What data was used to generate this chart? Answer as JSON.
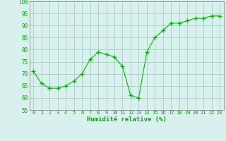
{
  "x": [
    0,
    1,
    2,
    3,
    4,
    5,
    6,
    7,
    8,
    9,
    10,
    11,
    12,
    13,
    14,
    15,
    16,
    17,
    18,
    19,
    20,
    21,
    22,
    23
  ],
  "y": [
    71,
    66,
    64,
    64,
    65,
    67,
    70,
    76,
    79,
    78,
    77,
    73,
    61,
    60,
    79,
    85,
    88,
    91,
    91,
    92,
    93,
    93,
    94,
    94
  ],
  "xlabel": "Humidité relative (%)",
  "ylim": [
    55,
    100
  ],
  "yticks": [
    55,
    60,
    65,
    70,
    75,
    80,
    85,
    90,
    95,
    100
  ],
  "line_color": "#00bb00",
  "marker_color": "#00bb00",
  "bg_color": "#d8f0ee",
  "grid_color": "#99ccbb",
  "tick_label_color": "#00aa00",
  "axis_label_color": "#00aa00"
}
